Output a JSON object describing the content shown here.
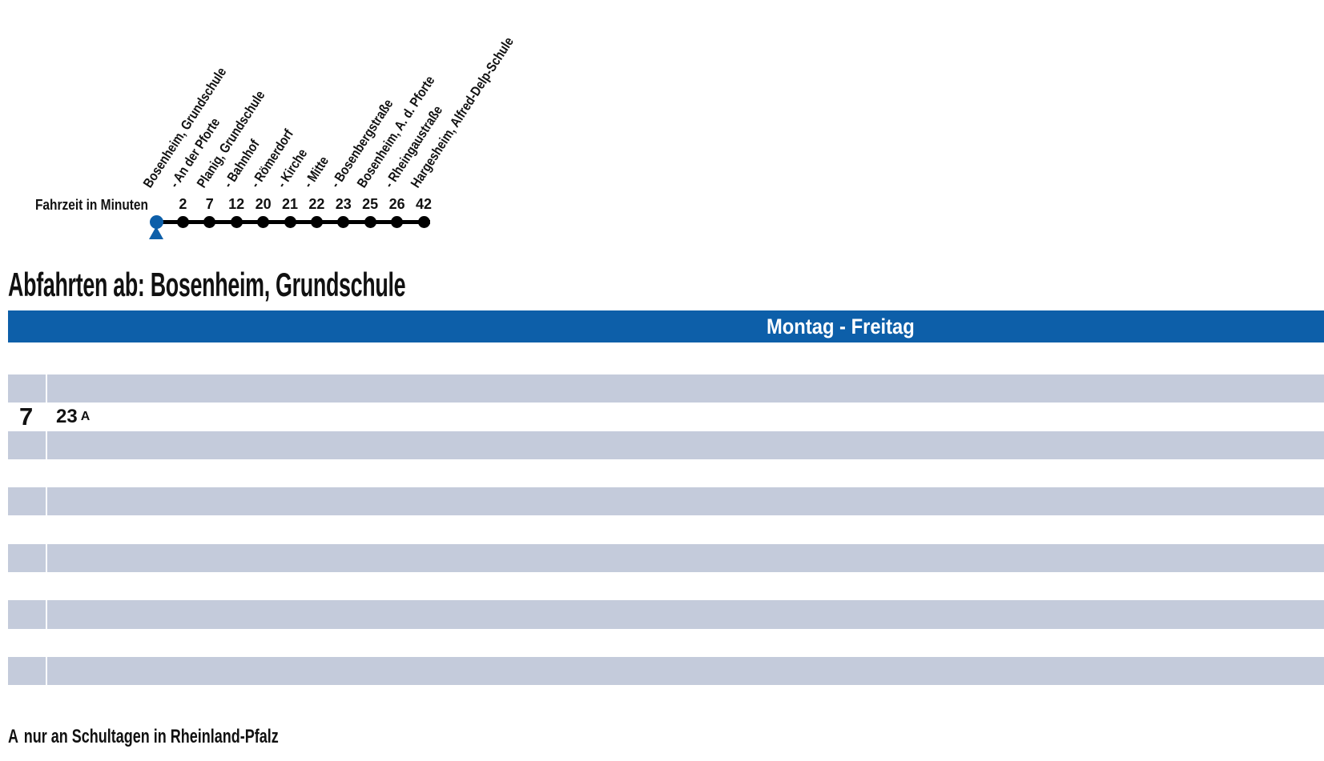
{
  "page": {
    "title": "Abfahrten ab: Bosenheim, Grundschule"
  },
  "diagram": {
    "fahrzeit_label": "Fahrzeit in Minuten",
    "stops": [
      {
        "name": "Bosenheim, Grundschule",
        "time": null,
        "start": true
      },
      {
        "name": "- An der Pforte",
        "time": "2"
      },
      {
        "name": "Planig, Grundschule",
        "time": "7"
      },
      {
        "name": "- Bahnhof",
        "time": "12"
      },
      {
        "name": "- Römerdorf",
        "time": "20"
      },
      {
        "name": "- Kirche",
        "time": "21"
      },
      {
        "name": "- Mitte",
        "time": "22"
      },
      {
        "name": "- Bosenbergstraße",
        "time": "23"
      },
      {
        "name": "Bosenheim, A. d. Pforte",
        "time": "25"
      },
      {
        "name": "- Rheingaustraße",
        "time": "26"
      },
      {
        "name": "Hargesheim, Alfred-Delp-Schule",
        "time": "42"
      }
    ]
  },
  "timetable": {
    "day_header": "Montag - Freitag",
    "rows": [
      {
        "shade": "gray"
      },
      {
        "shade": "white",
        "hour": "7",
        "departures": [
          {
            "minute": "23",
            "note": "A"
          }
        ]
      },
      {
        "shade": "gray"
      },
      {
        "shade": "white"
      },
      {
        "shade": "gray"
      },
      {
        "shade": "white"
      },
      {
        "shade": "gray"
      },
      {
        "shade": "white"
      },
      {
        "shade": "gray"
      },
      {
        "shade": "white"
      },
      {
        "shade": "gray"
      }
    ]
  },
  "footnote": {
    "marker": "A",
    "text": "nur an Schultagen in Rheinland-Pfalz"
  },
  "colors": {
    "accent_blue": "#0d5fa9",
    "row_gray": "#c4cbdb"
  }
}
